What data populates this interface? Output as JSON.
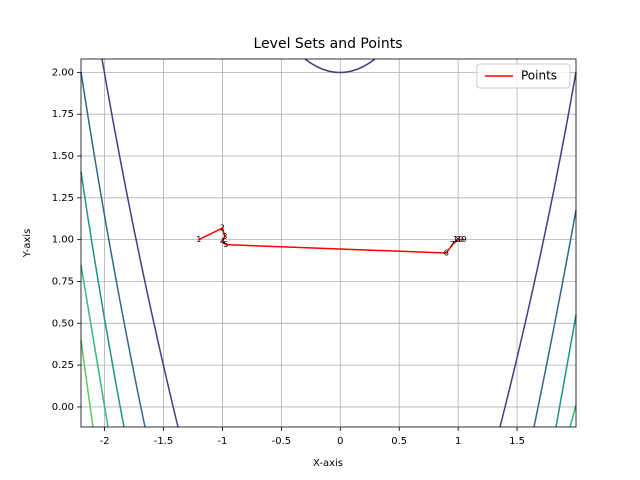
{
  "chart_data": {
    "type": "line",
    "title": "Level Sets and Points",
    "x_label": "X-axis",
    "y_label": "Y-axis",
    "xlim": [
      -2.2,
      2.0
    ],
    "ylim": [
      -0.12,
      2.08
    ],
    "xticks": [
      -2.0,
      -1.5,
      -1.0,
      -0.5,
      0.0,
      0.5,
      1.0,
      1.5
    ],
    "yticks": [
      {
        "value": 0,
        "label": "0.00"
      },
      {
        "value": 0.25,
        "label": "0.25"
      },
      {
        "value": 0.5,
        "label": "0.50"
      },
      {
        "value": 0.75,
        "label": "0.75"
      },
      {
        "value": 1.0,
        "label": "1.00"
      },
      {
        "value": 1.25,
        "label": "1.25"
      },
      {
        "value": 1.5,
        "label": "1.50"
      },
      {
        "value": 1.75,
        "label": "1.75"
      },
      {
        "value": 2.0,
        "label": "2.00"
      }
    ],
    "grid": true,
    "legend": "upper right",
    "series": [
      {
        "name": "Points",
        "color": "#ff0000",
        "x": [
          -1.2,
          -1.0,
          -0.98,
          -1.0,
          -0.97,
          0.9,
          0.95,
          1.0,
          1.05,
          1.0
        ],
        "values": [
          1.0,
          1.07,
          1.02,
          0.99,
          0.97,
          0.92,
          0.97,
          1.0,
          1.0,
          1.0
        ]
      }
    ],
    "point_labels": [
      "1",
      "2",
      "3",
      "4",
      "5",
      "6",
      "7",
      "8",
      "9",
      "10"
    ]
  }
}
